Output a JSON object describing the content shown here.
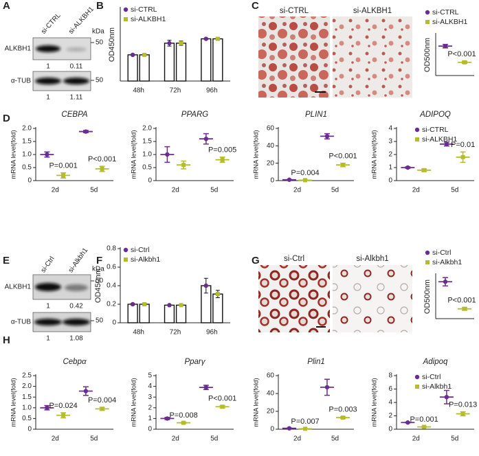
{
  "panel_labels": [
    "A",
    "B",
    "C",
    "D",
    "E",
    "F",
    "G",
    "H"
  ],
  "blots": [
    {
      "lanes": [
        "si-CTRL",
        "si-ALKBH1"
      ],
      "unit": "kDa",
      "rows": [
        {
          "label": "ALKBH1",
          "marker": 50,
          "quant": [
            1,
            0.11
          ]
        },
        {
          "label": "α-TUB",
          "marker": 50,
          "quant": [
            1,
            1.11
          ]
        }
      ]
    },
    {
      "lanes": [
        "si-Ctrl",
        "si-Alkbh1"
      ],
      "unit": "kDa",
      "rows": [
        {
          "label": "ALKBH1",
          "marker": 50,
          "quant": [
            1,
            0.42
          ]
        },
        {
          "label": "α-TUB",
          "marker": 50,
          "quant": [
            1,
            1.08
          ]
        }
      ]
    }
  ],
  "micrographs": [
    {
      "labels": [
        "si-CTRL",
        "si-ALKBH1"
      ]
    },
    {
      "labels": [
        "si-Ctrl",
        "si-Alkbh1"
      ]
    }
  ],
  "chart_data": [
    {
      "type": "bar",
      "y_label": "OD450nm",
      "categories": [
        "48h",
        "72h",
        "96h"
      ],
      "series": [
        {
          "name": "si-CTRL",
          "color": "#6a2c91",
          "values": [
            0.18,
            0.26,
            0.29
          ],
          "errors": [
            0.005,
            0.02,
            0.005
          ]
        },
        {
          "name": "si-ALKBH1",
          "color": "#b4bc2b",
          "values": [
            0.18,
            0.26,
            0.29
          ],
          "errors": [
            0.005,
            0.015,
            0.01
          ]
        }
      ],
      "ylim": [
        0,
        0.5
      ],
      "legend": "upper left"
    },
    {
      "type": "dot",
      "y_label": "OD500nm",
      "series": [
        {
          "name": "si-CTRL",
          "color": "#6a2c91",
          "values": [
            1.0
          ],
          "errors": [
            0.06
          ]
        },
        {
          "name": "si-ALKBH1",
          "color": "#b4bc2b",
          "values": [
            0.45
          ],
          "errors": [
            0.04
          ]
        }
      ],
      "annotations": [
        "P<0.001"
      ],
      "ylim": [
        0,
        1.4
      ],
      "legend": "above"
    },
    {
      "type": "dot",
      "title": "CEBPA",
      "y_label": "mRNA level(fold)",
      "categories": [
        "2d",
        "5d"
      ],
      "series": [
        {
          "color": "#6a2c91",
          "values": [
            1.0,
            1.88
          ],
          "errors": [
            0.1,
            0.04
          ]
        },
        {
          "color": "#b4bc2b",
          "values": [
            0.2,
            0.45
          ],
          "errors": [
            0.1,
            0.1
          ]
        }
      ],
      "annotations": [
        "P=0.001",
        "P<0.001"
      ],
      "ylim": [
        0,
        2
      ],
      "yticks": [
        0,
        0.5,
        {
          "value": 1,
          "label": "1.0"
        },
        1.5,
        {
          "value": 2,
          "label": "2.0"
        }
      ]
    },
    {
      "type": "dot",
      "title": "PPARG",
      "y_label": "mRNA level(fold)",
      "categories": [
        "2d",
        "5d"
      ],
      "series": [
        {
          "color": "#6a2c91",
          "values": [
            1.0,
            1.6
          ],
          "errors": [
            0.3,
            0.2
          ]
        },
        {
          "color": "#b4bc2b",
          "values": [
            0.6,
            0.8
          ],
          "errors": [
            0.15,
            0.1
          ]
        }
      ],
      "annotations": [
        null,
        "P=0.005"
      ],
      "ylim": [
        0,
        2
      ],
      "yticks": [
        0,
        0.5,
        {
          "value": 1,
          "label": "1.0"
        },
        1.5,
        {
          "value": 2,
          "label": "2.0"
        }
      ]
    },
    {
      "type": "dot",
      "title": "PLIN1",
      "y_label": "mRNA level(fold)",
      "categories": [
        "2d",
        "5d"
      ],
      "series": [
        {
          "color": "#6a2c91",
          "values": [
            1,
            51
          ],
          "errors": [
            0.3,
            3
          ]
        },
        {
          "color": "#b4bc2b",
          "values": [
            0.5,
            18
          ],
          "errors": [
            0.3,
            2
          ]
        }
      ],
      "annotations": [
        "P=0.004",
        "P<0.001"
      ],
      "ylim": [
        0,
        60
      ],
      "yticks": [
        0,
        20,
        40,
        60
      ]
    },
    {
      "type": "dot",
      "title": "ADIPOQ",
      "y_label": "mRNA level(fold)",
      "categories": [
        "2d",
        "5d"
      ],
      "series": [
        {
          "name": "si-CTRL",
          "color": "#6a2c91",
          "values": [
            1.0,
            2.8
          ],
          "errors": [
            0.05,
            0.15
          ]
        },
        {
          "name": "si-ALKBH1",
          "color": "#b4bc2b",
          "values": [
            0.8,
            1.8
          ],
          "errors": [
            0.1,
            0.4
          ]
        }
      ],
      "annotations": [
        null,
        "P=0.01"
      ],
      "ylim": [
        0,
        4
      ],
      "yticks": [
        0,
        1,
        2,
        3,
        4
      ],
      "legend": "upper right"
    },
    {
      "type": "bar",
      "y_label": "OD450nm",
      "categories": [
        "48h",
        "72h",
        "96h"
      ],
      "series": [
        {
          "name": "si-Ctrl",
          "color": "#6a2c91",
          "values": [
            0.2,
            0.19,
            0.4
          ],
          "errors": [
            0.01,
            0.005,
            0.08
          ]
        },
        {
          "name": "si-Alkbh1",
          "color": "#b4bc2b",
          "values": [
            0.2,
            0.19,
            0.31
          ],
          "errors": [
            0.01,
            0.005,
            0.04
          ]
        }
      ],
      "ylim": [
        0,
        0.8
      ],
      "yticks": [
        0,
        0.2,
        0.4,
        0.6,
        0.8
      ],
      "legend": "upper left"
    },
    {
      "type": "dot",
      "y_label": "OD500nm",
      "series": [
        {
          "name": "si-Ctrl",
          "color": "#6a2c91",
          "values": [
            1.05
          ],
          "errors": [
            0.12
          ]
        },
        {
          "name": "si-Alkbh1",
          "color": "#b4bc2b",
          "values": [
            0.28
          ],
          "errors": [
            0.04
          ]
        }
      ],
      "annotations": [
        "P<0.001"
      ],
      "ylim": [
        0,
        1.25
      ],
      "legend": "above"
    },
    {
      "type": "dot",
      "title": "Cebpα",
      "y_label": "mRNA level(fold)",
      "categories": [
        "2d",
        "5d"
      ],
      "series": [
        {
          "color": "#6a2c91",
          "values": [
            1.0,
            1.78
          ],
          "errors": [
            0.1,
            0.2
          ]
        },
        {
          "color": "#b4bc2b",
          "values": [
            0.65,
            0.95
          ],
          "errors": [
            0.12,
            0.07
          ]
        }
      ],
      "annotations": [
        "P=0.024",
        "P=0.004"
      ],
      "ylim": [
        0,
        2.5
      ],
      "yticks": [
        0,
        0.5,
        {
          "value": 1,
          "label": "1.0"
        },
        1.5,
        {
          "value": 2,
          "label": "2.0"
        },
        2.5
      ]
    },
    {
      "type": "dot",
      "title": "Pparγ",
      "y_label": "mRNA level(fold)",
      "categories": [
        "2d",
        "5d"
      ],
      "series": [
        {
          "color": "#6a2c91",
          "values": [
            1.0,
            3.9
          ],
          "errors": [
            0.1,
            0.2
          ]
        },
        {
          "color": "#b4bc2b",
          "values": [
            0.6,
            2.1
          ],
          "errors": [
            0.05,
            0.12
          ]
        }
      ],
      "annotations": [
        "P=0.008",
        "P<0.001"
      ],
      "ylim": [
        0,
        5
      ],
      "yticks": [
        0,
        1,
        2,
        3,
        4,
        5
      ]
    },
    {
      "type": "dot",
      "title": "Plin1",
      "y_label": "mRNA level(fold)",
      "categories": [
        "2d",
        "5d"
      ],
      "series": [
        {
          "color": "#6a2c91",
          "values": [
            1,
            47
          ],
          "errors": [
            0.3,
            9
          ]
        },
        {
          "color": "#b4bc2b",
          "values": [
            0.5,
            13
          ],
          "errors": [
            0.3,
            1
          ]
        }
      ],
      "annotations": [
        "P=0.007",
        "P=0.003"
      ],
      "ylim": [
        0,
        60
      ],
      "yticks": [
        0,
        20,
        40,
        60
      ]
    },
    {
      "type": "dot",
      "title": "Adipoq",
      "y_label": "mRNA level(fold)",
      "categories": [
        "2d",
        "5d"
      ],
      "series": [
        {
          "name": "si-Ctrl",
          "color": "#6a2c91",
          "values": [
            1.0,
            4.8
          ],
          "errors": [
            0.05,
            1.0
          ]
        },
        {
          "name": "si-Alkbh1",
          "color": "#b4bc2b",
          "values": [
            0.35,
            2.3
          ],
          "errors": [
            0.05,
            0.3
          ]
        }
      ],
      "annotations": [
        "P=0.001",
        "P=0.013"
      ],
      "ylim": [
        0,
        8
      ],
      "yticks": [
        0,
        2,
        4,
        6,
        8
      ],
      "legend": "upper right"
    }
  ]
}
